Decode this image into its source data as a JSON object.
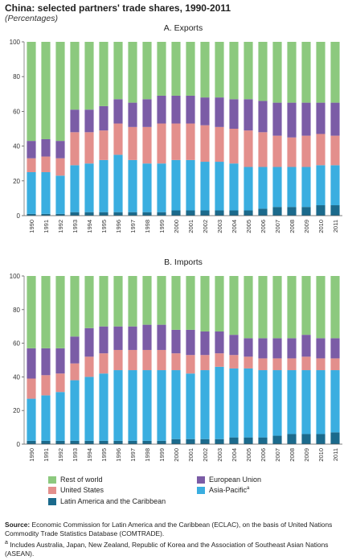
{
  "title": "China: selected partners' trade shares, 1990-2011",
  "subtitle": "(Percentages)",
  "colors": {
    "Rest of world": "#8cc97e",
    "European Union": "#7b5ca6",
    "United States": "#e38f8c",
    "Asia-Pacific": "#3aaee0",
    "Latin America and the Caribbean": "#1b6a8c"
  },
  "legend": {
    "items": [
      {
        "label": "Rest of world",
        "series": "Rest of world"
      },
      {
        "label": "European Union",
        "series": "European Union"
      },
      {
        "label": "United States",
        "series": "United States"
      },
      {
        "label": "Asia-Pacific",
        "series": "Asia-Pacific",
        "marker": "a"
      },
      {
        "label": "Latin America and the Caribbean",
        "series": "Latin America and the Caribbean"
      }
    ]
  },
  "source": {
    "label": "Source:",
    "text": "Economic Commission for Latin America and the Caribbean (ECLAC), on the basis of United Nations Commodity Trade Statistics Database (COMTRADE)."
  },
  "footnote": {
    "marker": "a",
    "text": "Includes Australia, Japan, New Zealand, Republic of Korea and the Association of Southeast Asian Nations (ASEAN)."
  },
  "chart_data": [
    {
      "type": "bar",
      "stacked": true,
      "title": "A. Exports",
      "categories": [
        "1990",
        "1991",
        "1992",
        "1993",
        "1994",
        "1995",
        "1996",
        "1997",
        "1998",
        "1999",
        "2000",
        "2001",
        "2002",
        "2003",
        "2004",
        "2005",
        "2006",
        "2007",
        "2008",
        "2009",
        "2010",
        "2011"
      ],
      "ylim": [
        0,
        100
      ],
      "yticks": [
        0,
        20,
        40,
        60,
        80,
        100
      ],
      "series": [
        {
          "name": "Latin America and the Caribbean",
          "values": [
            1,
            1,
            1,
            2,
            2,
            2,
            2,
            2,
            2,
            2,
            3,
            3,
            3,
            3,
            3,
            3,
            4,
            5,
            5,
            5,
            6,
            6
          ]
        },
        {
          "name": "Asia-Pacific",
          "values": [
            24,
            24,
            22,
            27,
            28,
            30,
            33,
            30,
            28,
            28,
            29,
            29,
            28,
            28,
            27,
            25,
            24,
            23,
            23,
            23,
            23,
            23
          ]
        },
        {
          "name": "United States",
          "values": [
            8,
            9,
            10,
            19,
            18,
            17,
            18,
            19,
            21,
            23,
            21,
            21,
            21,
            20,
            20,
            21,
            20,
            18,
            17,
            18,
            18,
            17
          ]
        },
        {
          "name": "European Union",
          "values": [
            10,
            10,
            10,
            13,
            13,
            14,
            14,
            14,
            16,
            16,
            16,
            16,
            16,
            17,
            17,
            18,
            18,
            19,
            20,
            19,
            18,
            19
          ]
        },
        {
          "name": "Rest of world",
          "values": [
            57,
            56,
            57,
            39,
            39,
            37,
            33,
            35,
            33,
            31,
            31,
            31,
            32,
            32,
            33,
            33,
            34,
            35,
            35,
            35,
            35,
            35
          ]
        }
      ]
    },
    {
      "type": "bar",
      "stacked": true,
      "title": "B. Imports",
      "categories": [
        "1990",
        "1991",
        "1992",
        "1993",
        "1994",
        "1995",
        "1996",
        "1997",
        "1998",
        "1999",
        "2000",
        "2001",
        "2002",
        "2003",
        "2004",
        "2005",
        "2006",
        "2007",
        "2008",
        "2009",
        "2010",
        "2011"
      ],
      "ylim": [
        0,
        100
      ],
      "yticks": [
        0,
        20,
        40,
        60,
        80,
        100
      ],
      "series": [
        {
          "name": "Latin America and the Caribbean",
          "values": [
            2,
            2,
            2,
            2,
            2,
            2,
            2,
            2,
            2,
            2,
            3,
            3,
            3,
            3,
            4,
            4,
            4,
            5,
            6,
            6,
            6,
            7
          ]
        },
        {
          "name": "Asia-Pacific",
          "values": [
            25,
            27,
            29,
            36,
            38,
            40,
            42,
            42,
            42,
            42,
            41,
            39,
            41,
            43,
            41,
            41,
            40,
            39,
            38,
            38,
            38,
            37
          ]
        },
        {
          "name": "United States",
          "values": [
            12,
            12,
            11,
            10,
            12,
            12,
            12,
            12,
            12,
            12,
            10,
            11,
            9,
            8,
            8,
            7,
            7,
            7,
            7,
            8,
            7,
            7
          ]
        },
        {
          "name": "European Union",
          "values": [
            18,
            16,
            15,
            16,
            17,
            16,
            14,
            14,
            15,
            15,
            14,
            15,
            14,
            13,
            12,
            11,
            12,
            12,
            12,
            13,
            12,
            12
          ]
        },
        {
          "name": "Rest of world",
          "values": [
            43,
            43,
            43,
            36,
            31,
            30,
            30,
            30,
            29,
            29,
            32,
            32,
            33,
            33,
            35,
            37,
            37,
            37,
            37,
            35,
            37,
            37
          ]
        }
      ]
    }
  ]
}
